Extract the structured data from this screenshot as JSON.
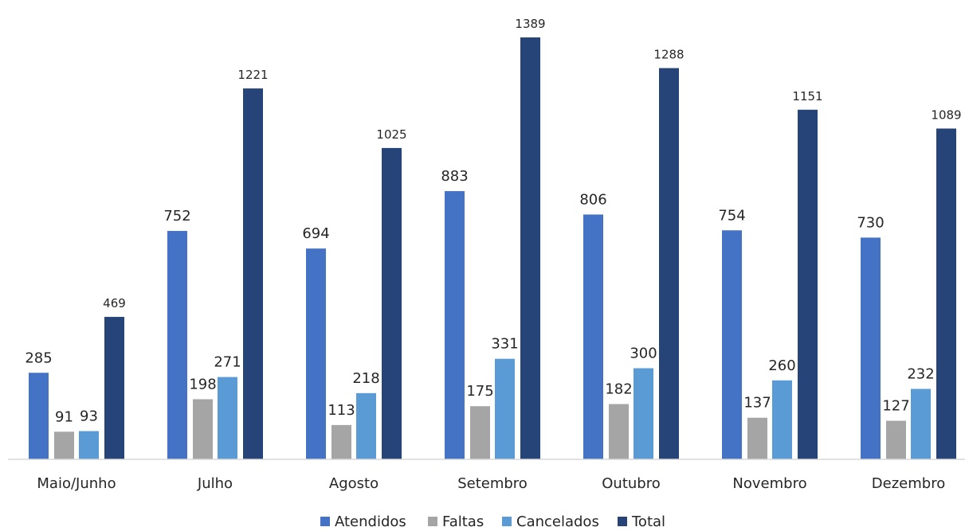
{
  "chart_data": {
    "type": "bar",
    "title": "",
    "xlabel": "",
    "ylabel": "",
    "ylim": [
      0,
      1389
    ],
    "grid": false,
    "legend_position": "bottom",
    "categories": [
      "Maio/Junho",
      "Julho",
      "Agosto",
      "Setembro",
      "Outubro",
      "Novembro",
      "Dezembro"
    ],
    "series": [
      {
        "name": "Atendidos",
        "color": "#4472c4",
        "values": [
          285,
          752,
          694,
          883,
          806,
          754,
          730
        ]
      },
      {
        "name": "Faltas",
        "color": "#a5a5a5",
        "values": [
          91,
          198,
          113,
          175,
          182,
          137,
          127
        ]
      },
      {
        "name": "Cancelados",
        "color": "#5b9bd5",
        "values": [
          93,
          271,
          218,
          331,
          300,
          260,
          232
        ]
      },
      {
        "name": "Total",
        "color": "#264478",
        "values": [
          469,
          1221,
          1025,
          1389,
          1288,
          1151,
          1089
        ]
      }
    ]
  }
}
